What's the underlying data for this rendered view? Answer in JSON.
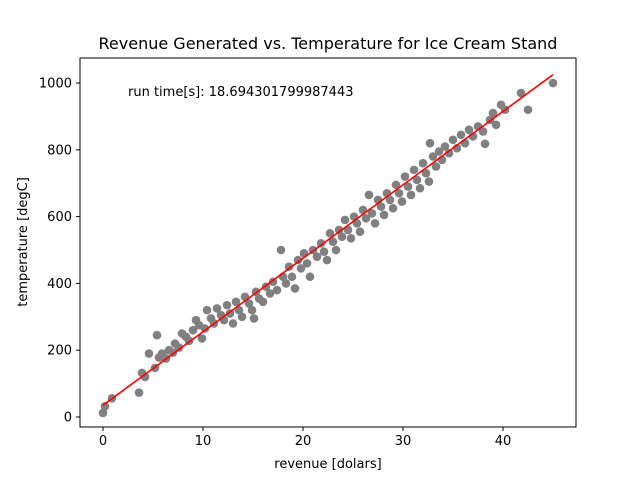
{
  "chart_data": {
    "type": "scatter",
    "title": "Revenue Generated vs. Temperature for Ice Cream Stand",
    "xlabel": "revenue [dolars]",
    "ylabel": "temperature [degC]",
    "xlim": [
      -2.3,
      47.3
    ],
    "ylim": [
      -30,
      1075
    ],
    "x_ticks": [
      0,
      10,
      20,
      30,
      40
    ],
    "y_ticks": [
      0,
      200,
      400,
      600,
      800,
      1000
    ],
    "x_tick_labels": [
      "0",
      "10",
      "20",
      "30",
      "40"
    ],
    "y_tick_labels": [
      "0",
      "200",
      "400",
      "600",
      "800",
      "1000"
    ],
    "grid": false,
    "legend": "none",
    "annotation": "run time[s]: 18.694301799987443",
    "colors": {
      "points": "#808080",
      "fit_line": "#ff0000"
    },
    "fit_line": {
      "x": [
        0,
        45
      ],
      "y": [
        35,
        1025
      ]
    },
    "series": [
      {
        "values": [
          [
            0,
            12
          ],
          [
            0.2,
            32
          ],
          [
            0.9,
            56
          ],
          [
            3.6,
            73
          ],
          [
            3.9,
            132
          ],
          [
            4.2,
            120
          ],
          [
            4.6,
            190
          ],
          [
            5.2,
            147
          ],
          [
            5.4,
            245
          ],
          [
            5.6,
            178
          ],
          [
            5.9,
            190
          ],
          [
            6.3,
            175
          ],
          [
            6.6,
            200
          ],
          [
            7.0,
            193
          ],
          [
            7.2,
            220
          ],
          [
            7.6,
            208
          ],
          [
            7.9,
            250
          ],
          [
            8.3,
            240
          ],
          [
            8.6,
            228
          ],
          [
            9.0,
            260
          ],
          [
            9.3,
            290
          ],
          [
            9.6,
            275
          ],
          [
            9.9,
            235
          ],
          [
            10.2,
            265
          ],
          [
            10.4,
            320
          ],
          [
            10.8,
            295
          ],
          [
            11.1,
            280
          ],
          [
            11.4,
            325
          ],
          [
            11.8,
            305
          ],
          [
            12.1,
            290
          ],
          [
            12.4,
            335
          ],
          [
            12.7,
            310
          ],
          [
            13.0,
            280
          ],
          [
            13.3,
            345
          ],
          [
            13.6,
            320
          ],
          [
            13.9,
            300
          ],
          [
            14.2,
            360
          ],
          [
            14.6,
            340
          ],
          [
            14.9,
            320
          ],
          [
            15.1,
            295
          ],
          [
            15.3,
            375
          ],
          [
            15.6,
            355
          ],
          [
            16.0,
            345
          ],
          [
            16.3,
            390
          ],
          [
            16.7,
            370
          ],
          [
            17.0,
            405
          ],
          [
            17.4,
            380
          ],
          [
            17.8,
            500
          ],
          [
            18.0,
            420
          ],
          [
            18.3,
            400
          ],
          [
            18.6,
            450
          ],
          [
            18.9,
            420
          ],
          [
            19.2,
            385
          ],
          [
            19.5,
            470
          ],
          [
            19.8,
            445
          ],
          [
            20.1,
            490
          ],
          [
            20.4,
            460
          ],
          [
            20.7,
            420
          ],
          [
            21.0,
            500
          ],
          [
            21.4,
            480
          ],
          [
            21.8,
            520
          ],
          [
            22.1,
            495
          ],
          [
            22.4,
            470
          ],
          [
            22.7,
            550
          ],
          [
            23.0,
            525
          ],
          [
            23.3,
            500
          ],
          [
            23.6,
            560
          ],
          [
            23.9,
            540
          ],
          [
            24.2,
            590
          ],
          [
            24.5,
            560
          ],
          [
            24.8,
            535
          ],
          [
            25.1,
            600
          ],
          [
            25.4,
            580
          ],
          [
            25.7,
            555
          ],
          [
            26.0,
            620
          ],
          [
            26.3,
            595
          ],
          [
            26.6,
            665
          ],
          [
            26.9,
            610
          ],
          [
            27.2,
            580
          ],
          [
            27.5,
            650
          ],
          [
            27.8,
            630
          ],
          [
            28.1,
            605
          ],
          [
            28.4,
            670
          ],
          [
            28.7,
            650
          ],
          [
            29.0,
            625
          ],
          [
            29.3,
            695
          ],
          [
            29.6,
            670
          ],
          [
            29.9,
            645
          ],
          [
            30.2,
            720
          ],
          [
            30.5,
            690
          ],
          [
            30.8,
            665
          ],
          [
            31.1,
            740
          ],
          [
            31.4,
            710
          ],
          [
            31.7,
            685
          ],
          [
            32.0,
            760
          ],
          [
            32.3,
            730
          ],
          [
            32.6,
            705
          ],
          [
            32.7,
            820
          ],
          [
            33.0,
            780
          ],
          [
            33.3,
            750
          ],
          [
            33.6,
            795
          ],
          [
            33.9,
            770
          ],
          [
            34.2,
            810
          ],
          [
            34.6,
            790
          ],
          [
            35.0,
            830
          ],
          [
            35.4,
            805
          ],
          [
            35.8,
            845
          ],
          [
            36.2,
            820
          ],
          [
            36.6,
            860
          ],
          [
            37.0,
            840
          ],
          [
            37.5,
            870
          ],
          [
            38.0,
            855
          ],
          [
            38.2,
            818
          ],
          [
            38.7,
            890
          ],
          [
            39.0,
            910
          ],
          [
            39.3,
            875
          ],
          [
            39.8,
            935
          ],
          [
            40.2,
            920
          ],
          [
            41.8,
            970
          ],
          [
            42.5,
            920
          ],
          [
            45.0,
            1000
          ]
        ]
      }
    ]
  }
}
